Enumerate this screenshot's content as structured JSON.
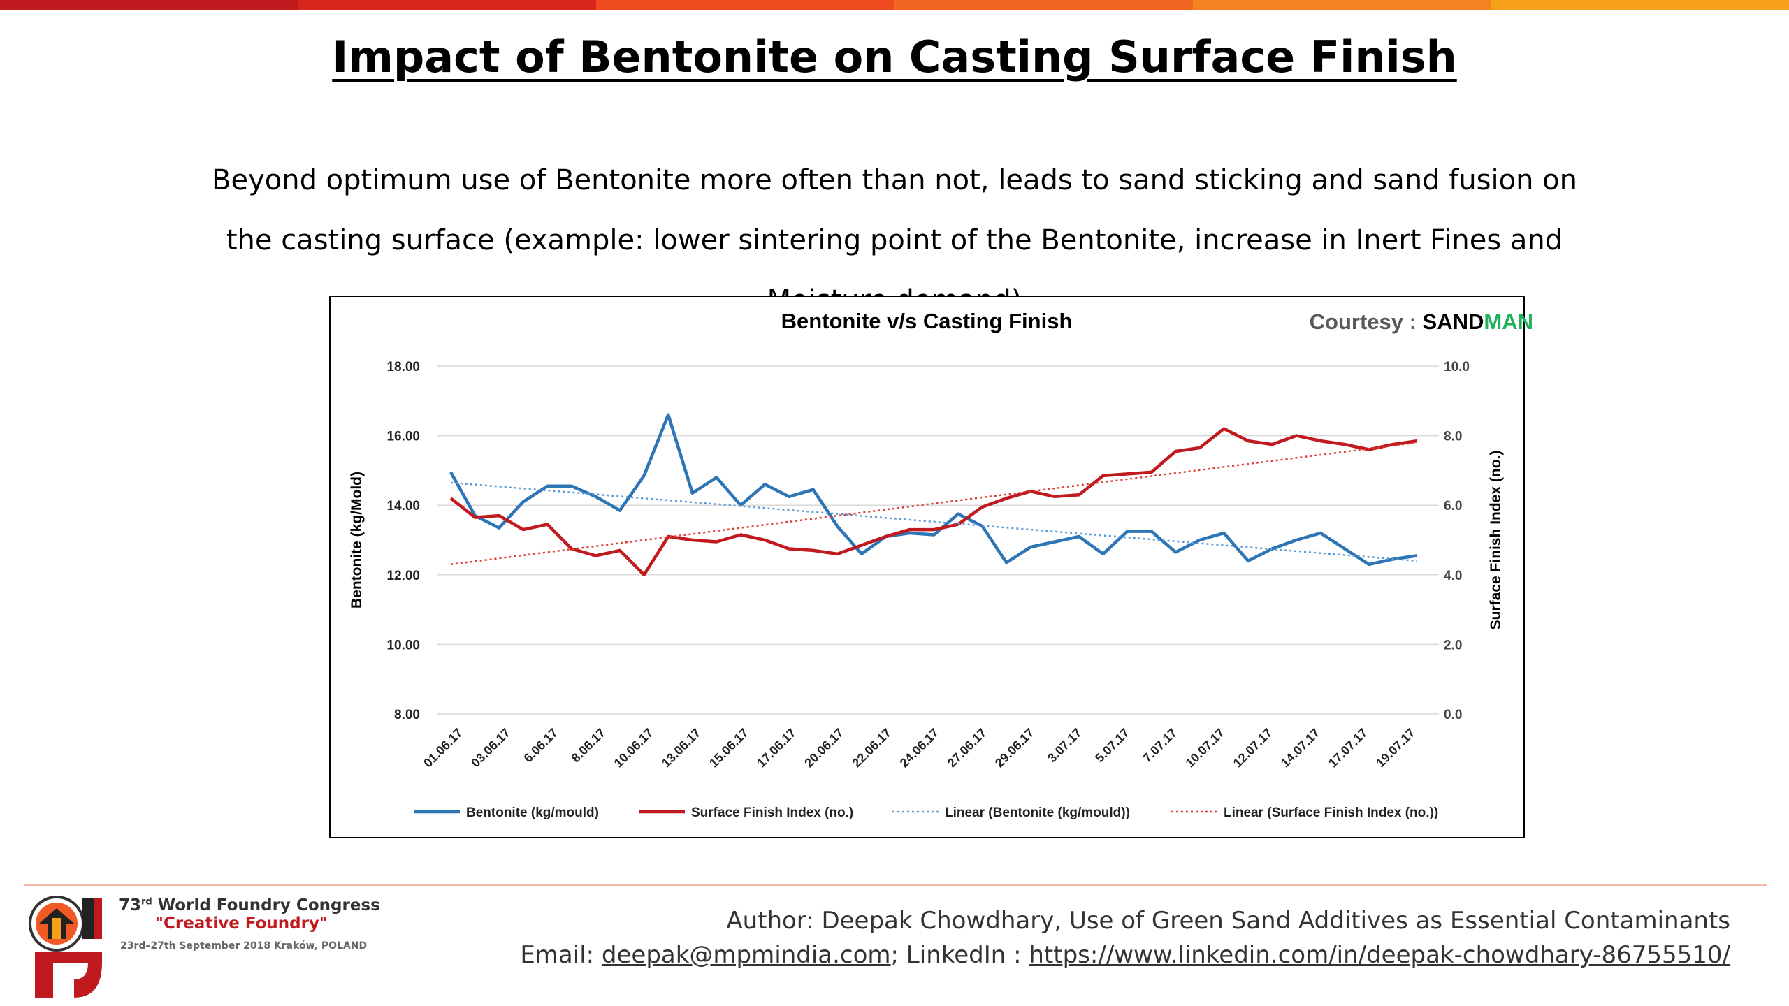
{
  "slide": {
    "title": "Impact of Bentonite on Casting Surface Finish",
    "body": "Beyond optimum use of Bentonite more often than not, leads to sand sticking and sand fusion on the casting surface (example: lower sintering point of the Bentonite, increase in Inert Fines and Moisture demand)",
    "accent_colors": [
      "#c0191e",
      "#d9261c",
      "#ee4a1f",
      "#f26522",
      "#f58220",
      "#f7a01a"
    ]
  },
  "courtesy": {
    "label": "Courtesy : ",
    "brand_part1": "SAND",
    "brand_part2": "MAN"
  },
  "footer": {
    "congress": "World Foundry Congress",
    "number": "73",
    "ordinal": "rd",
    "slogan": "\"Creative Foundry\"",
    "dates": "23rd–27th September 2018 Kraków, POLAND",
    "author": "Author: Deepak Chowdhary, Use of Green Sand Additives as Essential Contaminants",
    "email_label": "Email: ",
    "email": "deepak@mpmindia.com",
    "linkedin_label": "; LinkedIn : ",
    "linkedin": "https://www.linkedin.com/in/deepak-chowdhary-86755510/"
  },
  "chart_data": {
    "type": "line",
    "title": "Bentonite v/s Casting Finish",
    "ylabel": "Bentonite (kg/Mold)",
    "y2label": "Surface Finish Index (no.)",
    "ylim": [
      8,
      18
    ],
    "y2lim": [
      0,
      10
    ],
    "yticks": [
      "8.00",
      "10.00",
      "12.00",
      "14.00",
      "16.00",
      "18.00"
    ],
    "y2ticks": [
      "0.0",
      "2.0",
      "4.0",
      "6.0",
      "8.0",
      "10.0"
    ],
    "xtick_labels": [
      "01.06.17",
      "03.06.17",
      "6.06.17",
      "8.06.17",
      "10.06.17",
      "13.06.17",
      "15.06.17",
      "17.06.17",
      "20.06.17",
      "22.06.17",
      "24.06.17",
      "27.06.17",
      "29.06.17",
      "3.07.17",
      "5.07.17",
      "7.07.17",
      "10.07.17",
      "12.07.17",
      "14.07.17",
      "17.07.17",
      "19.07.17"
    ],
    "grid": true,
    "legend_position": "bottom",
    "series": [
      {
        "name": "Bentonite (kg/mould)",
        "axis": "left",
        "color": "#2e75b6",
        "values": [
          14.95,
          13.7,
          13.35,
          14.1,
          14.55,
          14.55,
          14.25,
          13.85,
          14.85,
          16.6,
          14.35,
          14.8,
          14.0,
          14.6,
          14.25,
          14.45,
          13.4,
          12.6,
          13.1,
          13.2,
          13.15,
          13.75,
          13.4,
          12.35,
          12.8,
          12.95,
          13.1,
          12.6,
          13.25,
          13.25,
          12.65,
          13.0,
          13.2,
          12.4,
          12.75,
          13.0,
          13.2,
          12.75,
          12.3,
          12.45,
          12.55
        ]
      },
      {
        "name": "Surface Finish Index (no.)",
        "axis": "right",
        "color": "#c0191e",
        "values": [
          6.2,
          5.65,
          5.7,
          5.3,
          5.45,
          4.75,
          4.55,
          4.7,
          4.0,
          5.1,
          5.0,
          4.95,
          5.15,
          5.0,
          4.75,
          4.7,
          4.6,
          4.85,
          5.1,
          5.3,
          5.3,
          5.45,
          5.95,
          6.2,
          6.4,
          6.25,
          6.3,
          6.85,
          6.9,
          6.95,
          7.55,
          7.65,
          8.2,
          7.85,
          7.75,
          8.0,
          7.85,
          7.75,
          7.6,
          7.75,
          7.85
        ]
      },
      {
        "name": "Linear (Bentonite (kg/mould))",
        "axis": "left",
        "color": "#5b9bd5",
        "trend": [
          14.65,
          12.4
        ]
      },
      {
        "name": "Linear (Surface Finish Index (no.))",
        "axis": "right",
        "color": "#e03c31",
        "trend": [
          4.3,
          7.8
        ]
      }
    ]
  }
}
